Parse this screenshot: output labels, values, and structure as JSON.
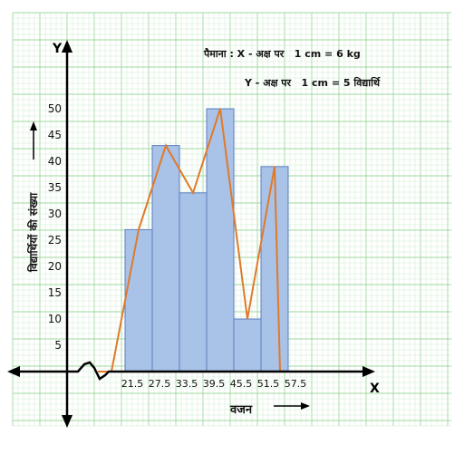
{
  "chart_data": {
    "type": "histogram-with-frequency-polygon",
    "scale": {
      "line1": "पैमाना : X - अक्ष पर   1 cm = 6 kg",
      "line2": "Y - अक्ष पर   1 cm = 5 विद्यार्थि"
    },
    "xlabel": "वजन",
    "ylabel": "विद्यार्थियों की संख्या",
    "x_axis_letter": "X",
    "y_axis_letter": "Y",
    "x_ticks": [
      "21.5",
      "27.5",
      "33.5",
      "39.5",
      "45.5",
      "51.5",
      "57.5"
    ],
    "y_ticks": [
      "5",
      "10",
      "15",
      "20",
      "25",
      "30",
      "35",
      "40",
      "45",
      "50"
    ],
    "ylim": [
      0,
      50
    ],
    "class_edges": [
      21.5,
      27.5,
      33.5,
      39.5,
      45.5,
      51.5
    ],
    "values": [
      27,
      43,
      34,
      50,
      10,
      39
    ],
    "polygon": {
      "x": [
        15.5,
        18.5,
        24.5,
        30.5,
        36.5,
        42.5,
        48.5,
        54.5
      ],
      "y": [
        0,
        0,
        27,
        43,
        34,
        50,
        10,
        39
      ]
    },
    "colors": {
      "bar_fill": "#a9c2e8",
      "bar_stroke": "#5b7fc0",
      "polygon": "#e07a2a",
      "grid_minor": "#cfeccf",
      "grid_major": "#9fd89f",
      "axis": "#000000"
    }
  }
}
